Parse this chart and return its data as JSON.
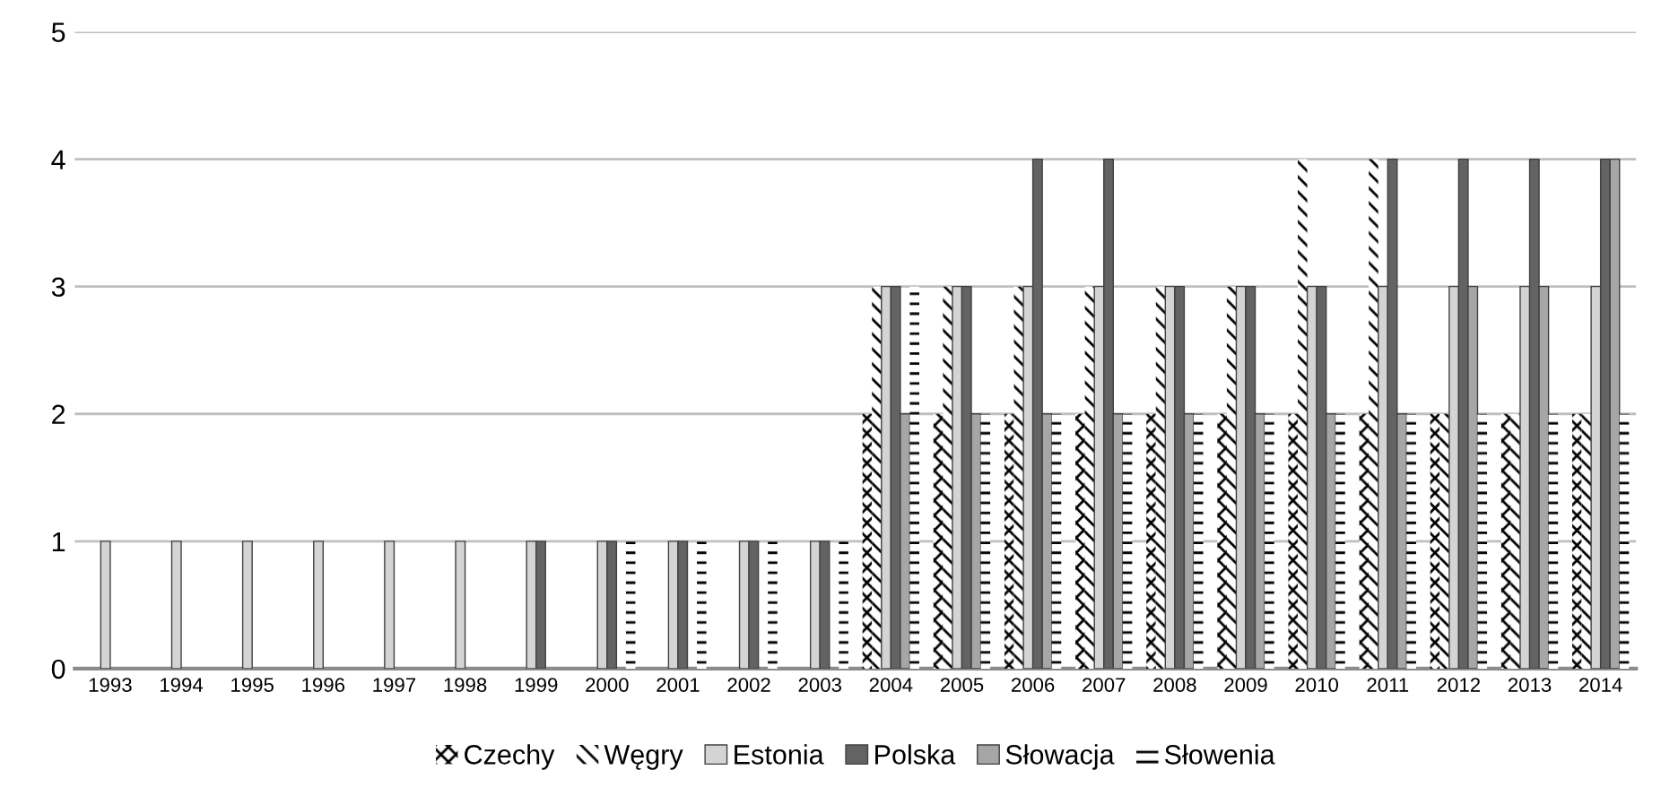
{
  "chart_data": {
    "type": "bar",
    "categories": [
      "1993",
      "1994",
      "1995",
      "1996",
      "1997",
      "1998",
      "1999",
      "2000",
      "2001",
      "2002",
      "2003",
      "2004",
      "2005",
      "2006",
      "2007",
      "2008",
      "2009",
      "2010",
      "2011",
      "2012",
      "2013",
      "2014"
    ],
    "series": [
      {
        "name": "Czechy",
        "color": "#000000",
        "values": [
          0,
          0,
          0,
          0,
          0,
          0,
          0,
          0,
          0,
          0,
          0,
          2,
          2,
          2,
          2,
          2,
          2,
          2,
          2,
          2,
          2,
          2
        ]
      },
      {
        "name": "Węgry",
        "color": "#000000",
        "values": [
          0,
          0,
          0,
          0,
          0,
          0,
          0,
          0,
          0,
          0,
          0,
          3,
          3,
          3,
          3,
          3,
          3,
          4,
          4,
          2,
          2,
          2
        ]
      },
      {
        "name": "Estonia",
        "color": "#d4d4d4",
        "values": [
          1,
          1,
          1,
          1,
          1,
          1,
          1,
          1,
          1,
          1,
          1,
          3,
          3,
          3,
          3,
          3,
          3,
          3,
          3,
          3,
          3,
          3
        ]
      },
      {
        "name": "Polska",
        "color": "#636363",
        "values": [
          0,
          0,
          0,
          0,
          0,
          0,
          1,
          1,
          1,
          1,
          1,
          3,
          3,
          4,
          4,
          3,
          3,
          3,
          4,
          4,
          4,
          4
        ]
      },
      {
        "name": "Słowacja",
        "color": "#a6a6a6",
        "values": [
          0,
          0,
          0,
          0,
          0,
          0,
          0,
          0,
          0,
          0,
          0,
          2,
          2,
          2,
          2,
          2,
          2,
          2,
          2,
          3,
          3,
          4
        ]
      },
      {
        "name": "Słowenia",
        "color": "#000000",
        "values": [
          0,
          0,
          0,
          0,
          0,
          0,
          0,
          1,
          1,
          1,
          1,
          3,
          2,
          2,
          2,
          2,
          2,
          2,
          2,
          2,
          2,
          2
        ]
      }
    ],
    "ylim": [
      0,
      5
    ],
    "yticks": [
      0,
      1,
      2,
      3,
      4,
      5
    ],
    "grid": "y",
    "legend": "bottom"
  }
}
